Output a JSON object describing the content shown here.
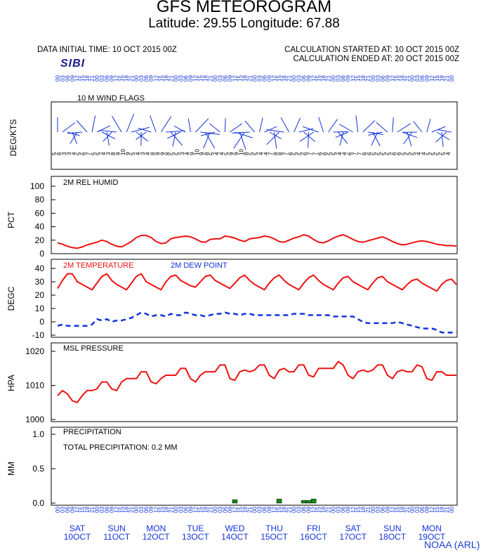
{
  "header": {
    "title": "GFS METEOROGRAM",
    "subtitle": "Latitude: 29.55 Longitude:  67.88",
    "initial_time": "DATA INITIAL TIME: 10 OCT 2015 00Z",
    "calc_started": "CALCULATION STARTED AT: 10 OCT 2015 00Z",
    "calc_ended": "CALCULATION ENDED AT: 20 OCT 2015 00Z",
    "logo": "SIBI",
    "credit": "NOAA (ARL)"
  },
  "colors": {
    "temperature": "#ee1111",
    "dewpoint": "#1133dd",
    "rh": "#ee1111",
    "pressure": "#ee1111",
    "precip": "#138a13",
    "wind": "#1133dd",
    "days": "#1133dd"
  },
  "days": [
    {
      "name": "SAT",
      "date": "10OCT"
    },
    {
      "name": "SUN",
      "date": "11OCT"
    },
    {
      "name": "MON",
      "date": "12OCT"
    },
    {
      "name": "TUE",
      "date": "13OCT"
    },
    {
      "name": "WED",
      "date": "14OCT"
    },
    {
      "name": "THU",
      "date": "15OCT"
    },
    {
      "name": "FRI",
      "date": "16OCT"
    },
    {
      "name": "SAT",
      "date": "17OCT"
    },
    {
      "name": "SUN",
      "date": "18OCT"
    },
    {
      "name": "MON",
      "date": "19OCT"
    }
  ],
  "chart_data": [
    {
      "type": "wind_barbs",
      "title": "10 M  WIND FLAGS",
      "ylabel": "DEG/KTS",
      "hour_labels": [
        "00",
        "03",
        "06",
        "09",
        "12",
        "15",
        "18",
        "21"
      ],
      "speeds_kts": [
        5,
        6,
        3,
        3,
        4,
        5,
        6,
        7,
        5,
        5,
        4,
        3,
        8,
        9,
        10,
        9,
        5,
        4,
        3,
        4,
        8,
        9,
        9,
        8,
        5,
        5,
        3,
        4,
        9,
        10,
        9,
        8,
        5,
        4,
        4,
        5,
        9,
        9,
        10,
        8,
        5,
        5,
        4,
        4,
        7,
        8,
        8,
        7,
        6,
        5,
        5,
        6,
        7,
        7,
        6,
        6,
        5,
        5,
        4,
        4,
        6,
        7,
        7,
        6,
        6,
        5,
        5,
        5,
        5,
        6,
        6,
        5,
        5,
        5,
        4,
        4,
        5,
        5,
        5,
        5,
        4
      ]
    },
    {
      "type": "line",
      "title": "2M REL HUMID",
      "ylabel": "PCT",
      "ylim": [
        0,
        100
      ],
      "yticks": [
        0,
        20,
        40,
        60,
        80,
        100
      ],
      "series": [
        {
          "name": "2M REL HUMID",
          "values": [
            16,
            14,
            11,
            9,
            8,
            10,
            13,
            15,
            17,
            20,
            18,
            14,
            11,
            10,
            14,
            18,
            24,
            27,
            27,
            24,
            18,
            15,
            16,
            22,
            24,
            25,
            26,
            25,
            22,
            18,
            17,
            21,
            22,
            22,
            26,
            25,
            23,
            20,
            18,
            22,
            23,
            24,
            26,
            25,
            22,
            18,
            17,
            20,
            23,
            25,
            28,
            26,
            21,
            17,
            16,
            19,
            23,
            26,
            28,
            25,
            21,
            18,
            17,
            19,
            21,
            23,
            25,
            22,
            18,
            15,
            13,
            14,
            16,
            18,
            19,
            18,
            16,
            14,
            13,
            12,
            12,
            11
          ]
        }
      ]
    },
    {
      "type": "line",
      "ylabel": "DEGC",
      "ylim": [
        -10,
        40
      ],
      "yticks": [
        -10,
        0,
        10,
        20,
        30,
        40
      ],
      "series": [
        {
          "name": "2M TEMPERATURE",
          "values": [
            25,
            31,
            36,
            36,
            30,
            28,
            26,
            24,
            29,
            34,
            36,
            31,
            28,
            26,
            24,
            29,
            34,
            36,
            30,
            28,
            26,
            24,
            30,
            34,
            35,
            31,
            29,
            27,
            26,
            30,
            34,
            35,
            31,
            29,
            27,
            25,
            29,
            33,
            35,
            31,
            28,
            26,
            24,
            29,
            33,
            35,
            31,
            28,
            26,
            24,
            29,
            33,
            35,
            31,
            28,
            26,
            24,
            29,
            33,
            34,
            30,
            28,
            26,
            24,
            29,
            33,
            34,
            30,
            28,
            26,
            24,
            28,
            31,
            32,
            29,
            27,
            25,
            23,
            28,
            31,
            32,
            28
          ]
        },
        {
          "name": "2M  DEW POINT",
          "values": [
            -3,
            -2,
            -3,
            -3,
            -3,
            -3,
            -3,
            -2,
            2,
            1,
            2,
            0,
            1,
            1,
            2,
            3,
            5,
            7,
            6,
            4,
            5,
            5,
            4,
            6,
            5,
            5,
            7,
            6,
            5,
            5,
            4,
            5,
            6,
            6,
            7,
            6,
            6,
            5,
            6,
            6,
            5,
            5,
            5,
            5,
            5,
            5,
            5,
            5,
            6,
            6,
            6,
            5,
            5,
            5,
            5,
            5,
            4,
            4,
            4,
            4,
            4,
            2,
            0,
            -1,
            -1,
            -1,
            -1,
            -1,
            -1,
            0,
            -1,
            -2,
            -3,
            -4,
            -5,
            -5,
            -5,
            -6,
            -8,
            -8,
            -8,
            -8
          ]
        }
      ]
    },
    {
      "type": "line",
      "title": "MSL PRESSURE",
      "ylabel": "HPA",
      "ylim": [
        1000,
        1020
      ],
      "yticks": [
        1000,
        1010,
        1020
      ],
      "series": [
        {
          "name": "MSL PRESSURE",
          "values": [
            1007,
            1008.5,
            1007.5,
            1005.5,
            1005,
            1007,
            1008.5,
            1008.5,
            1009,
            1011,
            1011,
            1009,
            1008.5,
            1011,
            1012,
            1012,
            1012,
            1014,
            1014,
            1011,
            1010.5,
            1012,
            1013,
            1013,
            1013,
            1015,
            1015,
            1012,
            1011,
            1013,
            1014,
            1014,
            1014,
            1016,
            1016,
            1012,
            1011.5,
            1014,
            1014.5,
            1014,
            1014.5,
            1016,
            1016,
            1013,
            1012,
            1014.5,
            1015,
            1014,
            1014,
            1016,
            1016,
            1013,
            1012.5,
            1015,
            1015,
            1015,
            1015,
            1017,
            1016,
            1013,
            1012,
            1014,
            1014.5,
            1014,
            1014.5,
            1016,
            1016,
            1013,
            1012,
            1014,
            1014.5,
            1014,
            1014,
            1016,
            1015.5,
            1012,
            1011.5,
            1014,
            1014,
            1013,
            1013,
            1013
          ]
        }
      ]
    },
    {
      "type": "bar",
      "title": "PRECIPITATION",
      "ylabel": "MM",
      "ylim": [
        0,
        1.0
      ],
      "yticks": [
        0.0,
        0.5,
        1.0
      ],
      "yticklabels": [
        "0.0",
        "0.5",
        "1.0"
      ],
      "annotation": "TOTAL PRECIPITATION:   0.2 MM",
      "hour_labels": [
        "00",
        "03",
        "06",
        "09",
        "12",
        "15",
        "18",
        "21"
      ],
      "values": [
        0,
        0,
        0,
        0,
        0,
        0,
        0,
        0,
        0,
        0,
        0,
        0,
        0,
        0,
        0,
        0,
        0,
        0,
        0,
        0,
        0,
        0,
        0,
        0,
        0,
        0,
        0,
        0,
        0,
        0,
        0,
        0,
        0,
        0,
        0,
        0,
        0.05,
        0,
        0,
        0,
        0,
        0,
        0,
        0,
        0,
        0.06,
        0,
        0,
        0,
        0,
        0.04,
        0.04,
        0.06,
        0,
        0,
        0,
        0,
        0,
        0,
        0,
        0,
        0,
        0,
        0,
        0,
        0,
        0,
        0,
        0,
        0,
        0,
        0,
        0,
        0,
        0,
        0,
        0,
        0,
        0,
        0,
        0
      ]
    }
  ]
}
